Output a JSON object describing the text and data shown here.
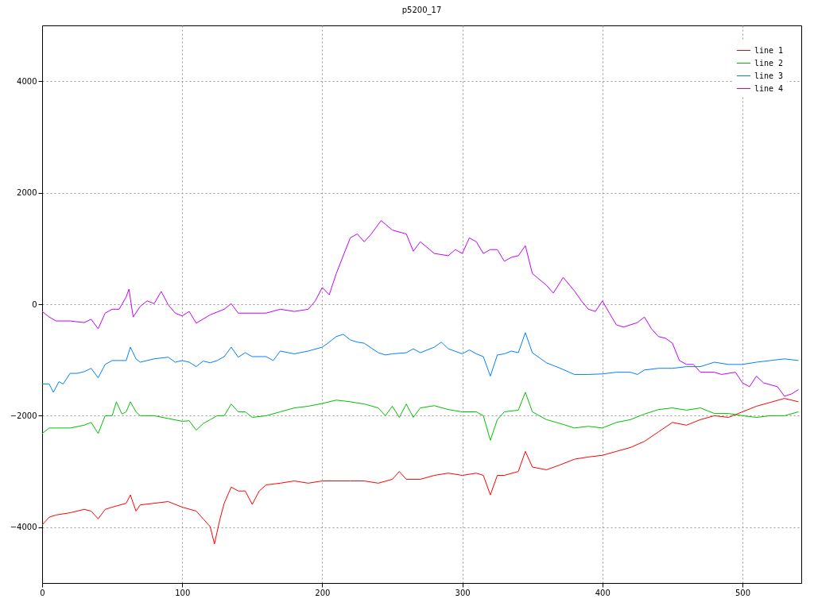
{
  "chart_data": {
    "type": "line",
    "title": "p5200_17",
    "xlim": [
      0,
      542
    ],
    "ylim": [
      -5000,
      5000
    ],
    "xticks": [
      0,
      100,
      200,
      300,
      400,
      500
    ],
    "yticks": [
      -4000,
      -2000,
      0,
      2000,
      4000
    ],
    "grid": true,
    "legend": "top right",
    "series": [
      {
        "name": "line 1",
        "color": "#ff0000",
        "x": [
          0,
          5,
          10,
          20,
          30,
          35,
          40,
          45,
          50,
          60,
          63,
          67,
          70,
          80,
          90,
          100,
          110,
          115,
          120,
          123,
          127,
          130,
          135,
          140,
          145,
          150,
          155,
          160,
          170,
          180,
          190,
          200,
          210,
          220,
          230,
          240,
          250,
          255,
          260,
          270,
          280,
          290,
          300,
          310,
          315,
          320,
          325,
          330,
          340,
          345,
          350,
          360,
          370,
          380,
          390,
          400,
          410,
          420,
          430,
          440,
          450,
          460,
          470,
          480,
          490,
          500,
          510,
          520,
          530,
          540
        ],
        "values": [
          -3960,
          -3820,
          -3780,
          -3740,
          -3680,
          -3710,
          -3850,
          -3680,
          -3640,
          -3570,
          -3420,
          -3710,
          -3600,
          -3570,
          -3540,
          -3640,
          -3710,
          -3850,
          -3990,
          -4300,
          -3850,
          -3570,
          -3280,
          -3350,
          -3350,
          -3590,
          -3350,
          -3240,
          -3210,
          -3170,
          -3210,
          -3170,
          -3170,
          -3170,
          -3170,
          -3210,
          -3140,
          -3000,
          -3140,
          -3140,
          -3070,
          -3030,
          -3070,
          -3030,
          -3070,
          -3420,
          -3070,
          -3070,
          -3000,
          -2640,
          -2920,
          -2970,
          -2880,
          -2780,
          -2740,
          -2710,
          -2640,
          -2570,
          -2460,
          -2290,
          -2120,
          -2170,
          -2070,
          -2000,
          -2030,
          -1930,
          -1830,
          -1760,
          -1690,
          -1750
        ]
      },
      {
        "name": "line 2",
        "color": "#00c000",
        "x": [
          0,
          5,
          10,
          20,
          30,
          35,
          40,
          45,
          50,
          53,
          57,
          60,
          63,
          67,
          70,
          80,
          90,
          100,
          105,
          110,
          115,
          120,
          125,
          130,
          135,
          140,
          145,
          150,
          160,
          170,
          180,
          190,
          200,
          210,
          220,
          230,
          240,
          245,
          250,
          255,
          260,
          265,
          270,
          280,
          290,
          300,
          310,
          315,
          320,
          325,
          330,
          340,
          345,
          350,
          360,
          370,
          380,
          390,
          400,
          410,
          420,
          430,
          440,
          450,
          460,
          470,
          480,
          490,
          500,
          510,
          520,
          530,
          540
        ],
        "values": [
          -2320,
          -2220,
          -2220,
          -2220,
          -2170,
          -2120,
          -2320,
          -2000,
          -2000,
          -1750,
          -1970,
          -1930,
          -1750,
          -1930,
          -2000,
          -2000,
          -2050,
          -2100,
          -2090,
          -2260,
          -2140,
          -2070,
          -2000,
          -2000,
          -1790,
          -1930,
          -1930,
          -2030,
          -2000,
          -1930,
          -1860,
          -1830,
          -1780,
          -1720,
          -1750,
          -1790,
          -1860,
          -2000,
          -1830,
          -2030,
          -1790,
          -2030,
          -1860,
          -1820,
          -1890,
          -1930,
          -1930,
          -2000,
          -2440,
          -2070,
          -1930,
          -1900,
          -1580,
          -1930,
          -2070,
          -2140,
          -2220,
          -2190,
          -2220,
          -2120,
          -2070,
          -1970,
          -1890,
          -1860,
          -1900,
          -1860,
          -1960,
          -1960,
          -2000,
          -2030,
          -2000,
          -2000,
          -1930
        ]
      },
      {
        "name": "line 3",
        "color": "#0080ff",
        "x": [
          0,
          5,
          8,
          12,
          15,
          20,
          25,
          30,
          35,
          40,
          45,
          50,
          55,
          60,
          63,
          67,
          70,
          80,
          90,
          95,
          100,
          105,
          110,
          115,
          120,
          125,
          130,
          135,
          140,
          145,
          150,
          160,
          165,
          170,
          180,
          190,
          200,
          205,
          210,
          215,
          220,
          225,
          230,
          240,
          245,
          250,
          260,
          265,
          270,
          280,
          285,
          290,
          300,
          305,
          310,
          315,
          320,
          325,
          330,
          335,
          340,
          345,
          350,
          360,
          370,
          380,
          390,
          400,
          410,
          420,
          425,
          430,
          440,
          450,
          460,
          470,
          480,
          490,
          500,
          510,
          520,
          530,
          540
        ],
        "values": [
          -1430,
          -1430,
          -1580,
          -1390,
          -1430,
          -1240,
          -1240,
          -1210,
          -1150,
          -1320,
          -1080,
          -1010,
          -1010,
          -1010,
          -770,
          -980,
          -1040,
          -980,
          -950,
          -1040,
          -1010,
          -1040,
          -1120,
          -1020,
          -1050,
          -1010,
          -940,
          -770,
          -950,
          -870,
          -940,
          -940,
          -1010,
          -840,
          -890,
          -840,
          -770,
          -680,
          -580,
          -540,
          -640,
          -680,
          -700,
          -870,
          -910,
          -890,
          -870,
          -800,
          -870,
          -770,
          -680,
          -800,
          -890,
          -820,
          -890,
          -940,
          -1290,
          -910,
          -890,
          -840,
          -870,
          -510,
          -870,
          -1050,
          -1150,
          -1260,
          -1260,
          -1250,
          -1220,
          -1220,
          -1260,
          -1180,
          -1150,
          -1150,
          -1120,
          -1120,
          -1040,
          -1080,
          -1080,
          -1040,
          -1010,
          -980,
          -1010
        ]
      },
      {
        "name": "line 4",
        "color": "#c000ff",
        "x": [
          0,
          5,
          10,
          20,
          30,
          35,
          40,
          45,
          50,
          55,
          60,
          62,
          65,
          70,
          75,
          80,
          85,
          90,
          95,
          100,
          105,
          110,
          120,
          130,
          135,
          140,
          150,
          160,
          170,
          180,
          190,
          195,
          200,
          205,
          210,
          220,
          225,
          230,
          235,
          242,
          250,
          260,
          265,
          270,
          280,
          290,
          295,
          300,
          305,
          310,
          315,
          320,
          325,
          330,
          335,
          340,
          345,
          350,
          360,
          365,
          372,
          380,
          385,
          390,
          395,
          400,
          405,
          410,
          415,
          420,
          425,
          430,
          435,
          440,
          445,
          450,
          455,
          460,
          465,
          470,
          475,
          480,
          485,
          495,
          500,
          505,
          510,
          515,
          525,
          530,
          535,
          540
        ],
        "values": [
          -130,
          -230,
          -300,
          -300,
          -330,
          -270,
          -440,
          -160,
          -90,
          -90,
          130,
          270,
          -230,
          -40,
          60,
          10,
          230,
          -10,
          -160,
          -210,
          -130,
          -340,
          -190,
          -90,
          10,
          -160,
          -160,
          -160,
          -90,
          -130,
          -90,
          60,
          300,
          170,
          550,
          1190,
          1260,
          1120,
          1260,
          1500,
          1330,
          1260,
          950,
          1120,
          910,
          870,
          980,
          910,
          1190,
          1120,
          910,
          980,
          980,
          770,
          840,
          870,
          1050,
          550,
          340,
          200,
          480,
          240,
          60,
          -90,
          -130,
          60,
          -160,
          -370,
          -410,
          -370,
          -330,
          -230,
          -440,
          -580,
          -610,
          -700,
          -1010,
          -1080,
          -1080,
          -1220,
          -1220,
          -1220,
          -1260,
          -1220,
          -1410,
          -1480,
          -1290,
          -1410,
          -1480,
          -1650,
          -1610,
          -1530
        ]
      }
    ]
  }
}
